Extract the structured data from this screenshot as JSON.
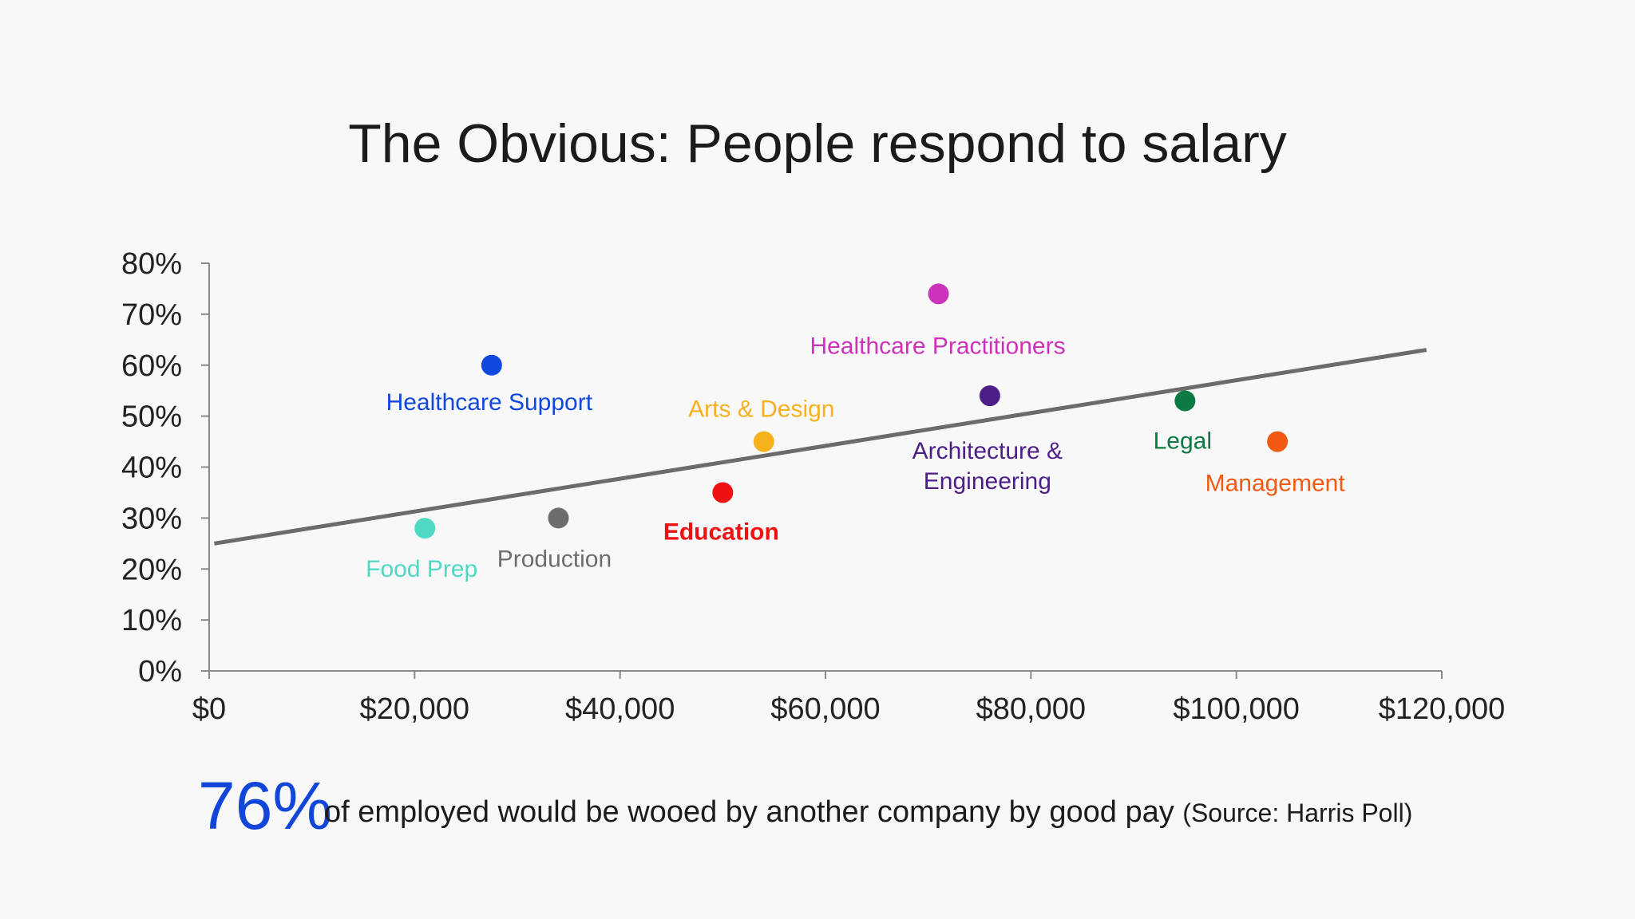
{
  "title": "The Obvious: People respond to salary",
  "footer": {
    "stat": "76%",
    "text": "of employed would be wooed by another company by good pay",
    "source": "(Source: Harris Poll)"
  },
  "chart_data": {
    "type": "scatter",
    "title": "The Obvious: People respond to salary",
    "xlabel": "",
    "ylabel": "",
    "xlim": [
      0,
      120000
    ],
    "ylim": [
      0,
      0.8
    ],
    "x_ticks": [
      "$0",
      "$20,000",
      "$40,000",
      "$60,000",
      "$80,000",
      "$100,000",
      "$120,000"
    ],
    "y_ticks": [
      "0%",
      "10%",
      "20%",
      "30%",
      "40%",
      "50%",
      "60%",
      "70%",
      "80%"
    ],
    "grid": false,
    "legend": "none",
    "points": [
      {
        "label": "Food Prep",
        "x": 21000,
        "y": 0.28,
        "color": "#4fd8c4"
      },
      {
        "label": "Healthcare Support",
        "x": 27500,
        "y": 0.6,
        "color": "#1148de"
      },
      {
        "label": "Production",
        "x": 34000,
        "y": 0.3,
        "color": "#6d6d6d"
      },
      {
        "label": "Education",
        "x": 50000,
        "y": 0.35,
        "color": "#ee1111",
        "bold": true
      },
      {
        "label": "Arts & Design",
        "x": 54000,
        "y": 0.45,
        "color": "#f5b21c"
      },
      {
        "label": "Healthcare Practitioners",
        "x": 71000,
        "y": 0.74,
        "color": "#cc33bb"
      },
      {
        "label": "Architecture & Engineering",
        "x": 76000,
        "y": 0.54,
        "color": "#4d1d88"
      },
      {
        "label": "Legal",
        "x": 95000,
        "y": 0.53,
        "color": "#0d7a43"
      },
      {
        "label": "Management",
        "x": 104000,
        "y": 0.45,
        "color": "#f25912"
      }
    ],
    "trendline": {
      "x": [
        500,
        118500
      ],
      "y": [
        0.25,
        0.63
      ],
      "color": "#6b6b6b"
    }
  }
}
